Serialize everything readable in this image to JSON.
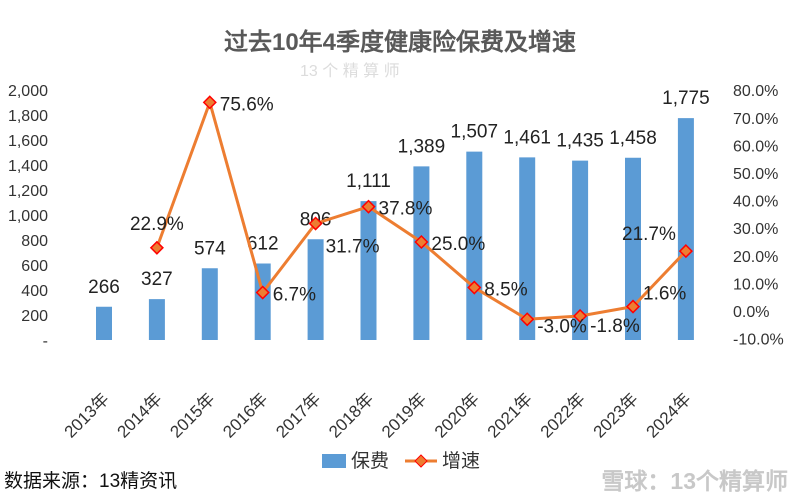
{
  "chart_data": {
    "type": "bar+line",
    "title": "过去10年4季度健康险保费及增速",
    "categories": [
      "2013年",
      "2014年",
      "2015年",
      "2016年",
      "2017年",
      "2018年",
      "2019年",
      "2020年",
      "2021年",
      "2022年",
      "2023年",
      "2024年"
    ],
    "series": [
      {
        "name": "保费",
        "type": "bar",
        "axis": "left",
        "color": "#5b9bd5",
        "values": [
          266,
          327,
          574,
          612,
          806,
          1111,
          1389,
          1507,
          1461,
          1435,
          1458,
          1775
        ],
        "labels": [
          "266",
          "327",
          "574",
          "612",
          "806",
          "1,111",
          "1,389",
          "1,507",
          "1,461",
          "1,435",
          "1,458",
          "1,775"
        ]
      },
      {
        "name": "增速",
        "type": "line",
        "axis": "right",
        "color": "#ed7d31",
        "marker_color": "#ff0000",
        "values": [
          null,
          22.9,
          75.6,
          6.7,
          31.7,
          37.8,
          25.0,
          8.5,
          -3.0,
          -1.8,
          1.6,
          21.7
        ],
        "labels": [
          "",
          "22.9%",
          "75.6%",
          "6.7%",
          "31.7%",
          "37.8%",
          "25.0%",
          "8.5%",
          "-3.0%",
          "-1.8%",
          "1.6%",
          "21.7%"
        ]
      }
    ],
    "left_axis": {
      "range": [
        0,
        2000
      ],
      "ticks": [
        "-",
        "200",
        "400",
        "600",
        "800",
        "1,000",
        "1,200",
        "1,400",
        "1,600",
        "1,800",
        "2,000"
      ]
    },
    "right_axis": {
      "range": [
        -10,
        80
      ],
      "ticks": [
        "-10.0%",
        "0.0%",
        "10.0%",
        "20.0%",
        "30.0%",
        "40.0%",
        "50.0%",
        "60.0%",
        "70.0%",
        "80.0%"
      ]
    },
    "grid": false,
    "legend": "bottom"
  },
  "source": "数据来源：13精资讯",
  "brand": "雪球：13个精算师",
  "watermark": "13 个 精 算 师"
}
